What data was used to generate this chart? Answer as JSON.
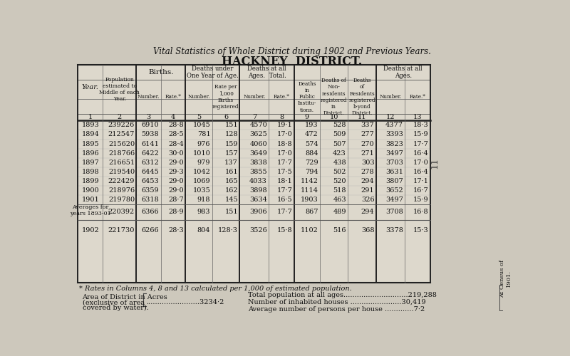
{
  "title1": "Vital Statistics of Whole District during 1902 and Previous Years.",
  "title2": "HACKNEY  DISTRICT.",
  "bg_color": "#cdc8bc",
  "table_bg": "#ddd8cc",
  "col_numbers": [
    "1",
    "2",
    "3",
    "4",
    "5",
    "6",
    "7",
    "8",
    "9",
    "10",
    "11",
    "12",
    "13"
  ],
  "rows": [
    [
      "1893",
      "239226",
      "6910",
      "28·8",
      "1045",
      "151",
      "4570",
      "19·1",
      "193",
      "528",
      "337",
      "4377",
      "18·3"
    ],
    [
      "1894",
      "212547",
      "5938",
      "28·5",
      "781",
      "128",
      "3625",
      "17·0",
      "472",
      "509",
      "277",
      "3393",
      "15·9"
    ],
    [
      "1895",
      "215620",
      "6141",
      "28·4",
      "976",
      "159",
      "4060",
      "18·8",
      "574",
      "507",
      "270",
      "3823",
      "17·7"
    ],
    [
      "1896",
      "218766",
      "6422",
      "30·0",
      "1010",
      "157",
      "3649",
      "17·0",
      "884",
      "423",
      "271",
      "3497",
      "16·4"
    ],
    [
      "1897",
      "216651",
      "6312",
      "29·0",
      "979",
      "137",
      "3838",
      "17·7",
      "729",
      "438",
      "303",
      "3703",
      "17·0"
    ],
    [
      "1898",
      "219540",
      "6445",
      "29·3",
      "1042",
      "161",
      "3855",
      "17·5",
      "794",
      "502",
      "278",
      "3631",
      "16·4"
    ],
    [
      "1899",
      "222429",
      "6453",
      "29·0",
      "1069",
      "165",
      "4033",
      "18·1",
      "1142",
      "520",
      "294",
      "3807",
      "17·1"
    ],
    [
      "1900",
      "218976",
      "6359",
      "29·0",
      "1035",
      "162",
      "3898",
      "17·7",
      "1114",
      "518",
      "291",
      "3652",
      "16·7"
    ],
    [
      "1901",
      "219780",
      "6318",
      "28·7",
      "918",
      "145",
      "3634",
      "16·5",
      "1903",
      "463",
      "326",
      "3497",
      "15·9"
    ]
  ],
  "avg_row": [
    "Averages for\nyears 1893-01",
    "220392",
    "6366",
    "28·9",
    "983",
    "151",
    "3906",
    "17·7",
    "867",
    "489",
    "294",
    "3708",
    "16·8"
  ],
  "row_1902": [
    "1902",
    "221730",
    "6266",
    "28·3",
    "804",
    "128·3",
    "3526",
    "15·8",
    "1102",
    "516",
    "368",
    "3378",
    "15·3"
  ],
  "footnote": "* Rates in Columns 4, 8 and 13 calculated per 1,000 of estimated population.",
  "footer_left_lines": [
    "Area of District in Acres",
    "(exclusive of area",
    "covered by water)."
  ],
  "footer_left_val": "3234·2",
  "footer_right": [
    [
      "Total population at all ages",
      "219,288"
    ],
    [
      "Number of inhabited houses",
      "30,419"
    ],
    [
      "Average number of persons per house",
      "7·2"
    ]
  ],
  "footer_census": "At Census of\n1901.",
  "side_label": "11"
}
